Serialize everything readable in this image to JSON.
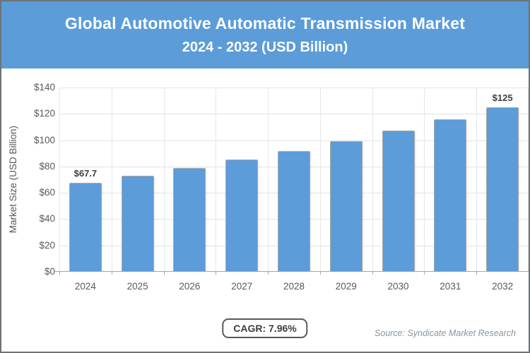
{
  "header": {
    "title_line1": "Global Automotive Automatic Transmission Market",
    "title_line2": "2024 - 2032 (USD Billion)"
  },
  "chart_data": {
    "type": "bar",
    "title": "Global Automotive Automatic Transmission Market 2024 - 2032 (USD Billion)",
    "categories": [
      "2024",
      "2025",
      "2026",
      "2027",
      "2028",
      "2029",
      "2030",
      "2031",
      "2032"
    ],
    "values": [
      67.7,
      73.1,
      78.9,
      85.2,
      92.0,
      99.3,
      107.2,
      115.7,
      125.0
    ],
    "bar_labels": [
      "$67.7",
      "",
      "",
      "",
      "",
      "",
      "",
      "",
      "$125"
    ],
    "xlabel": "",
    "ylabel": "Market Size (USD Billion)",
    "ylim": [
      0,
      140
    ],
    "y_tick_labels": [
      "$0",
      "$20",
      "$40",
      "$60",
      "$80",
      "$100",
      "$120",
      "$140"
    ],
    "grid": true,
    "legend": false,
    "bar_color": "#5B9CD9"
  },
  "footer": {
    "cagr_label": "CAGR: 7.96%",
    "source": "Source: Syndicate Market Research"
  },
  "colors": {
    "accent_blue": "#5B9CD9",
    "axis_text": "#595959",
    "gridline": "#e3e3e3",
    "frame_border": "#6d7277"
  }
}
